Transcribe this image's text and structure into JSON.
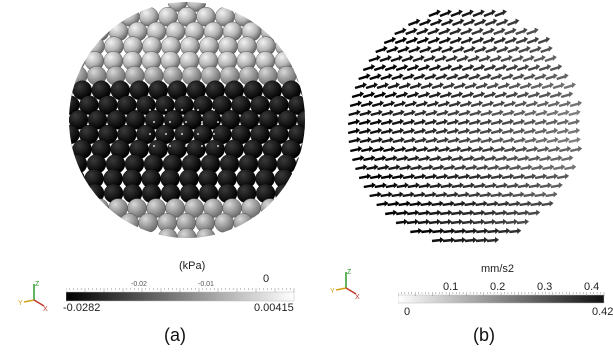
{
  "panel_a": {
    "caption": "(a)",
    "colorbar": {
      "unit": "(kPa)",
      "min_label": "-0.0282",
      "max_label": "0.00415",
      "tick_labels": [
        "-0.02",
        "-0.01",
        "0"
      ],
      "colors": [
        "#000000",
        "#ffffff"
      ]
    },
    "triad": {
      "z": "Z",
      "y": "Y",
      "x": "X"
    }
  },
  "panel_b": {
    "caption": "(b)",
    "colorbar": {
      "unit": "mm/s2",
      "min_label": "0",
      "max_label": "0.42",
      "tick_labels": [
        "0.1",
        "0.2",
        "0.3",
        "0.4"
      ],
      "colors": [
        "#ffffff",
        "#111111"
      ]
    },
    "triad": {
      "z": "Z",
      "y": "Y",
      "x": "X"
    }
  }
}
